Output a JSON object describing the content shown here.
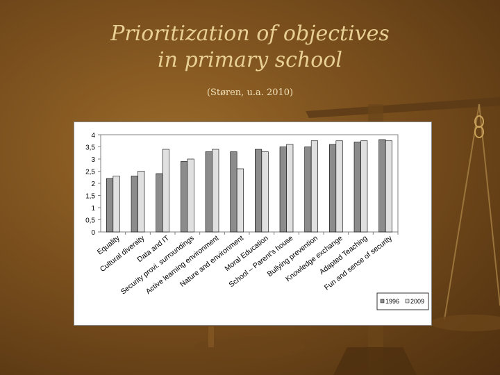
{
  "slide": {
    "title_line1": "Prioritization of objectives",
    "title_line2": "in primary school",
    "subtitle": "(Støren, u.a. 2010)"
  },
  "colors": {
    "series_1996": "#8c8c8c",
    "series_2009": "#e0e0e0",
    "title": "#e8cf93"
  },
  "chart_data": {
    "type": "bar",
    "categories": [
      "Equality",
      "Cultural diversity",
      "Data and IT",
      "Security provi. surroundings",
      "Active learning environment",
      "Nature and environment",
      "Moral Education",
      "School – Parent's house",
      "Bullying prevention",
      "Knowledge exchange",
      "Adapted Teaching",
      "Fun and sense of security"
    ],
    "series": [
      {
        "name": "1996",
        "values": [
          2.2,
          2.3,
          2.4,
          2.9,
          3.3,
          3.3,
          3.4,
          3.5,
          3.5,
          3.6,
          3.7,
          3.8
        ]
      },
      {
        "name": "2009",
        "values": [
          2.3,
          2.5,
          3.4,
          3.0,
          3.4,
          2.6,
          3.3,
          3.6,
          3.75,
          3.75,
          3.75,
          3.75
        ]
      }
    ],
    "yticks": [
      "0",
      "0,5",
      "1",
      "1,5",
      "2",
      "2,5",
      "3",
      "3,5",
      "4"
    ],
    "ylim": [
      0,
      4
    ],
    "legend_position": "bottom-right",
    "grid": false
  }
}
